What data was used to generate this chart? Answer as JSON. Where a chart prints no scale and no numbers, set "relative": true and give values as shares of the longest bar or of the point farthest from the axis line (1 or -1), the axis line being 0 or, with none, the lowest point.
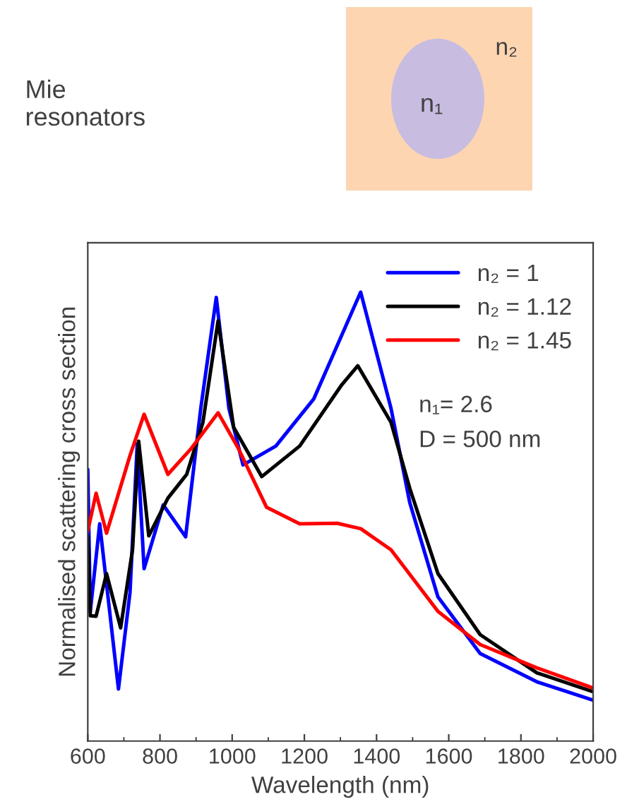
{
  "chart_data": {
    "type": "line",
    "relative": true,
    "xlabel": "Wavelength (nm)",
    "ylabel": "Normalised scattering cross section",
    "xlim": [
      600,
      2000
    ],
    "xticks": [
      600,
      800,
      1000,
      1200,
      1400,
      1600,
      1800,
      2000
    ],
    "legend": "top right",
    "grid": false,
    "annotations": [
      "Mie resonators",
      "n₂",
      "n₁",
      "n₁= 2.6",
      "D = 500 nm"
    ],
    "series": [
      {
        "name": "n₂ = 1",
        "color": "#0000ff",
        "x": [
          600,
          607,
          633,
          685,
          717,
          737,
          756,
          809,
          871,
          913,
          956,
          991,
          1030,
          1121,
          1226,
          1356,
          1440,
          1492,
          1570,
          1687,
          1844,
          2000
        ],
        "values": [
          0.605,
          0.289,
          0.484,
          0.116,
          0.331,
          0.662,
          0.384,
          0.526,
          0.455,
          0.741,
          0.988,
          0.741,
          0.615,
          0.657,
          0.762,
          1.0,
          0.741,
          0.531,
          0.321,
          0.195,
          0.132,
          0.091
        ]
      },
      {
        "name": "n₂ = 1.12",
        "color": "#000000",
        "x": [
          600,
          607,
          623,
          652,
          691,
          724,
          741,
          769,
          822,
          874,
          919,
          961,
          1004,
          1082,
          1187,
          1304,
          1348,
          1440,
          1492,
          1570,
          1687,
          1844,
          2000
        ],
        "values": [
          0.457,
          0.279,
          0.278,
          0.373,
          0.252,
          0.426,
          0.668,
          0.457,
          0.541,
          0.594,
          0.71,
          0.936,
          0.699,
          0.589,
          0.657,
          0.794,
          0.836,
          0.71,
          0.563,
          0.373,
          0.237,
          0.152,
          0.11
        ]
      },
      {
        "name": "n₂ = 1.45",
        "color": "#ff0000",
        "x": [
          600,
          623,
          652,
          717,
          756,
          822,
          887,
          961,
          1017,
          1095,
          1187,
          1291,
          1356,
          1440,
          1570,
          1687,
          1844,
          2000
        ],
        "values": [
          0.468,
          0.552,
          0.463,
          0.636,
          0.728,
          0.594,
          0.652,
          0.731,
          0.652,
          0.521,
          0.484,
          0.485,
          0.473,
          0.426,
          0.289,
          0.215,
          0.163,
          0.118
        ]
      }
    ]
  }
}
